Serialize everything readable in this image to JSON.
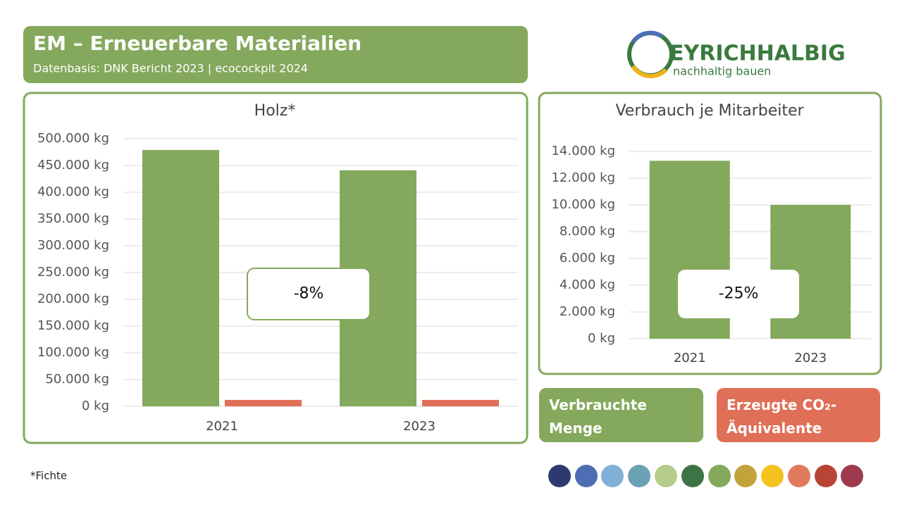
{
  "header": {
    "title": "EM – Erneuerbare Materialien",
    "subtitle": "Datenbasis: DNK Bericht 2023 | ecocockpit 2024"
  },
  "logo": {
    "name": "EYRICHHALBIG",
    "tagline": "nachhaltig bauen"
  },
  "chart_data": [
    {
      "type": "bar",
      "title": "Holz*",
      "categories": [
        "2021",
        "2023"
      ],
      "series": [
        {
          "name": "Verbrauchte Menge",
          "color": "#84a85c",
          "values": [
            479000,
            441000
          ]
        },
        {
          "name": "Erzeugte CO₂-Äquivalente",
          "color": "#e06f57",
          "values": [
            12000,
            12000
          ]
        }
      ],
      "ylim": [
        0,
        500000
      ],
      "yticks": [
        {
          "value": 0,
          "label": "0 kg"
        },
        {
          "value": 50000,
          "label": "50.000 kg"
        },
        {
          "value": 100000,
          "label": "100.000 kg"
        },
        {
          "value": 150000,
          "label": "150.000 kg"
        },
        {
          "value": 200000,
          "label": "200.000 kg"
        },
        {
          "value": 250000,
          "label": "250.000 kg"
        },
        {
          "value": 300000,
          "label": "300.000 kg"
        },
        {
          "value": 350000,
          "label": "350.000 kg"
        },
        {
          "value": 400000,
          "label": "400.000 kg"
        },
        {
          "value": 450000,
          "label": "450.000 kg"
        },
        {
          "value": 500000,
          "label": "500.000 kg"
        }
      ],
      "grid": true,
      "annotation": "-8%"
    },
    {
      "type": "bar",
      "title": "Verbrauch je Mitarbeiter",
      "categories": [
        "2021",
        "2023"
      ],
      "values": [
        13300,
        10000
      ],
      "color": "#84a85c",
      "ylim": [
        0,
        14000
      ],
      "yticks": [
        {
          "value": 0,
          "label": "0 kg"
        },
        {
          "value": 2000,
          "label": "2.000 kg"
        },
        {
          "value": 4000,
          "label": "4.000 kg"
        },
        {
          "value": 6000,
          "label": "6.000 kg"
        },
        {
          "value": 8000,
          "label": "8.000 kg"
        },
        {
          "value": 10000,
          "label": "10.000 kg"
        },
        {
          "value": 12000,
          "label": "12.000 kg"
        },
        {
          "value": 14000,
          "label": "14.000 kg"
        }
      ],
      "grid": true,
      "annotation": "-25%"
    }
  ],
  "footnote": "*Fichte"
}
